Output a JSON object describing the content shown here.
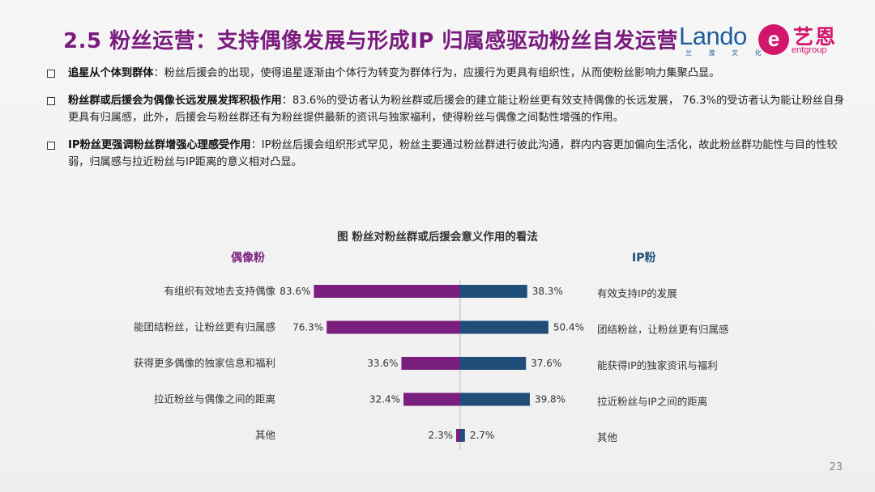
{
  "header": {
    "title": "2.5 粉丝运营：支持偶像发展与形成IP 归属感驱动粉丝自发运营",
    "logo_lando_word": "Lando",
    "logo_lando_sub": "兰 渡 文 化",
    "logo_ent_mark": "e",
    "logo_ent_cn": "艺恩",
    "logo_ent_en": "entgroup"
  },
  "bullets": [
    {
      "lead": "追星从个体到群体",
      "text": "：粉丝后援会的出现，使得追星逐渐由个体行为转变为群体行为，应援行为更具有组织性，从而使粉丝影响力集聚凸显。"
    },
    {
      "lead": "粉丝群或后援会为偶像长远发展发挥积极作用",
      "text": "：83.6%的受访者认为粉丝群或后援会的建立能让粉丝更有效支持偶像的长远发展， 76.3%的受访者认为能让粉丝自身更具有归属感，此外，后援会与粉丝群还有为粉丝提供最新的资讯与独家福利，使得粉丝与偶像之间黏性增强的作用。"
    },
    {
      "lead": "IP粉丝更强调粉丝群增强心理感受作用",
      "text": "：IP粉丝后援会组织形式罕见，粉丝主要通过粉丝群进行彼此沟通，群内内容更加偏向生活化，故此粉丝群功能性与目的性较弱，归属感与拉近粉丝与IP距离的意义相对凸显。"
    }
  ],
  "chart_data": {
    "type": "bar",
    "orientation": "horizontal-butterfly",
    "title": "图   粉丝对粉丝群或后援会意义作用的看法",
    "xlim": [
      0,
      100
    ],
    "series": [
      {
        "name": "偶像粉",
        "color": "#7b1f7f",
        "categories": [
          "有组织有效地去支持偶像",
          "能团结粉丝，让粉丝更有归属感",
          "获得更多偶像的独家信息和福利",
          "拉近粉丝与偶像之间的距离",
          "其他"
        ],
        "values": [
          83.6,
          76.3,
          33.6,
          32.4,
          2.3
        ],
        "labels": [
          "83.6%",
          "76.3%",
          "33.6%",
          "32.4%",
          "2.3%"
        ]
      },
      {
        "name": "IP粉",
        "color": "#1f4e79",
        "categories": [
          "有效支持IP的发展",
          "团结粉丝，让粉丝更有归属感",
          "能获得IP的独家资讯与福利",
          "拉近粉丝与IP之间的距离",
          "其他"
        ],
        "values": [
          38.3,
          50.4,
          37.6,
          39.8,
          2.7
        ],
        "labels": [
          "38.3%",
          "50.4%",
          "37.6%",
          "39.8%",
          "2.7%"
        ]
      }
    ]
  },
  "footer": {
    "page_number": "23"
  }
}
